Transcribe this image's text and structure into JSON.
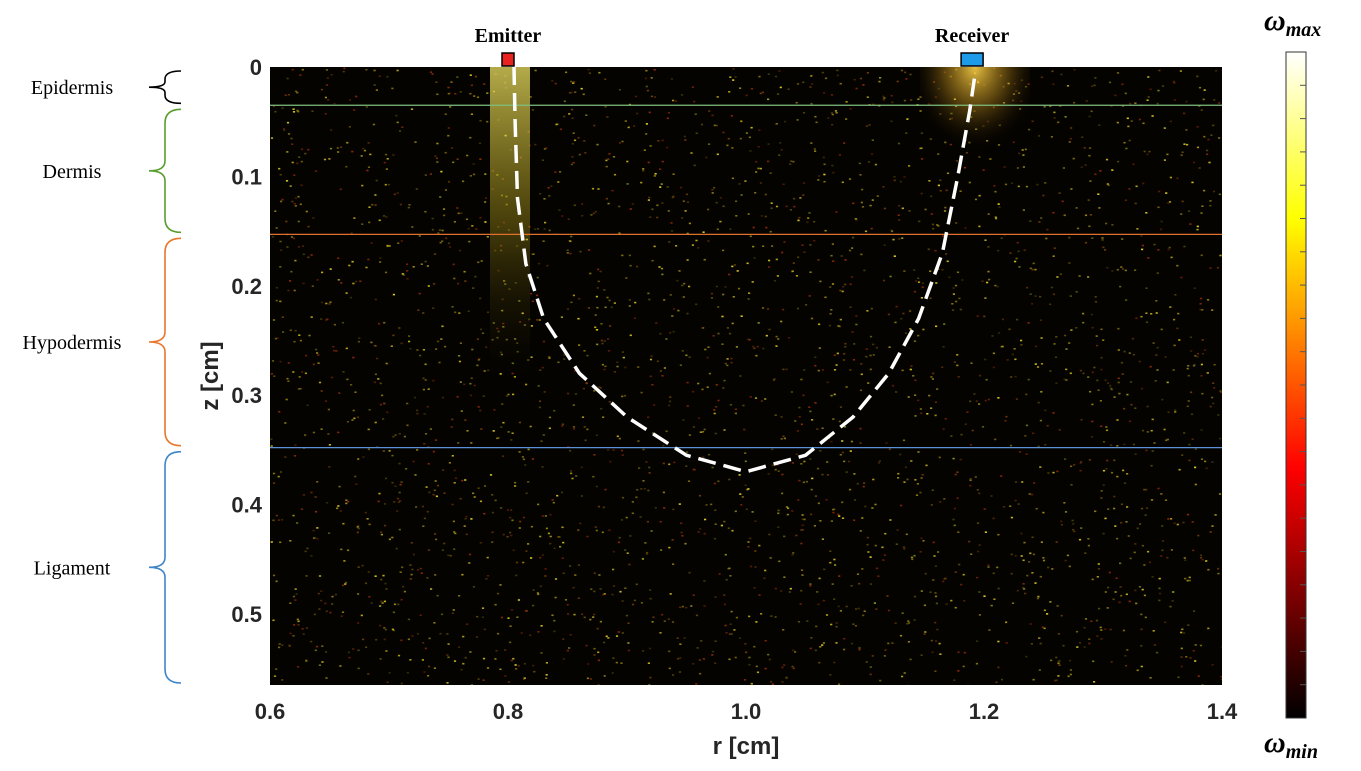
{
  "chart_data": {
    "type": "heatmap",
    "title": "",
    "xlabel": "r [cm]",
    "ylabel": "z [cm]",
    "xlim": [
      0.6,
      1.4
    ],
    "ylim": [
      0,
      0.565
    ],
    "y_reversed": true,
    "x_ticks": [
      0.6,
      0.8,
      1.0,
      1.2,
      1.4
    ],
    "x_tick_labels": [
      "0.6",
      "0.8",
      "1.0",
      "1.2",
      "1.4"
    ],
    "y_ticks": [
      0,
      0.1,
      0.2,
      0.3,
      0.4,
      0.5
    ],
    "y_tick_labels": [
      "0",
      "0.1",
      "0.2",
      "0.3",
      "0.4",
      "0.5"
    ],
    "colormap": "hot",
    "colorbar": {
      "max_label": "ω",
      "max_sub": "max",
      "min_label": "ω",
      "min_sub": "min"
    },
    "layers": [
      {
        "name": "Epidermis",
        "z_top": 0,
        "z_bottom": 0.035,
        "color": "#000000",
        "boundary_color": "#7fbf7f"
      },
      {
        "name": "Dermis",
        "z_top": 0.035,
        "z_bottom": 0.153,
        "color": "#5a9e2f",
        "boundary_color": "#e07030"
      },
      {
        "name": "Hypodermis",
        "z_top": 0.153,
        "z_bottom": 0.348,
        "color": "#e8772e",
        "boundary_color": "#5b8fd6"
      },
      {
        "name": "Ligament",
        "z_top": 0.348,
        "z_bottom": 0.565,
        "color": "#3f86c8",
        "boundary_color": ""
      }
    ],
    "markers": [
      {
        "label": "Emitter",
        "r": 0.8,
        "color": "#e8231f"
      },
      {
        "label": "Receiver",
        "r": 1.19,
        "color": "#1e9be8"
      }
    ],
    "path": {
      "description_points_r": [
        0.805,
        0.806,
        0.808,
        0.815,
        0.83,
        0.86,
        0.9,
        0.95,
        1.0,
        1.05,
        1.09,
        1.12,
        1.145,
        1.165,
        1.178,
        1.188,
        1.192
      ],
      "description_points_z": [
        0.0,
        0.05,
        0.12,
        0.18,
        0.23,
        0.28,
        0.32,
        0.355,
        0.37,
        0.355,
        0.32,
        0.28,
        0.23,
        0.17,
        0.1,
        0.04,
        0.01
      ],
      "color": "#ffffff",
      "style": "dashed"
    }
  }
}
